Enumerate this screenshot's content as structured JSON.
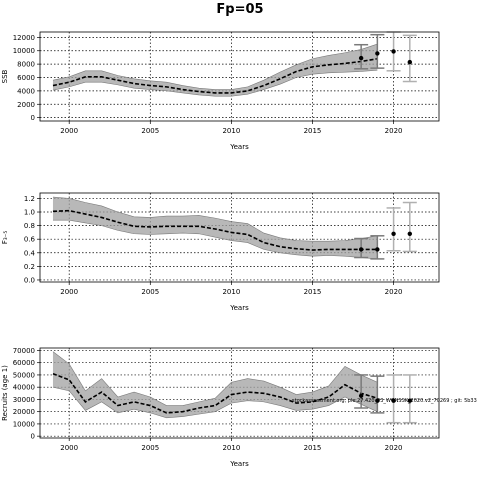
{
  "title": "Fp=05",
  "annotation": "stockassessment.org, ple.27.420_33_WGNSSK_2020.v2_70269 ; git: 5b33",
  "chart_data": [
    {
      "type": "line",
      "xlabel": "Years",
      "ylabel": "SSB",
      "xlim": [
        1998.2,
        2022.8
      ],
      "ylim": [
        -500,
        12800
      ],
      "xticks": [
        2000,
        2005,
        2010,
        2015,
        2020
      ],
      "yticks": [
        0,
        2000,
        4000,
        6000,
        8000,
        10000,
        12000
      ],
      "ytick_labels": [
        "0",
        "2000",
        "4000",
        "6000",
        "8000",
        "10000",
        "12000"
      ],
      "grid": true,
      "x": [
        1999,
        2000,
        2001,
        2002,
        2003,
        2004,
        2005,
        2006,
        2007,
        2008,
        2009,
        2010,
        2011,
        2012,
        2013,
        2014,
        2015,
        2016,
        2017,
        2018,
        2019
      ],
      "estimate": [
        4800,
        5300,
        6100,
        6100,
        5600,
        5100,
        4800,
        4600,
        4200,
        3900,
        3700,
        3700,
        4000,
        4800,
        5800,
        6900,
        7600,
        7900,
        8100,
        8400,
        8800
      ],
      "lower": [
        4100,
        4600,
        5300,
        5300,
        4900,
        4400,
        4200,
        4000,
        3700,
        3400,
        3200,
        3200,
        3500,
        4200,
        5000,
        6000,
        6500,
        6700,
        6800,
        6900,
        7100
      ],
      "upper": [
        5600,
        6100,
        7000,
        7000,
        6300,
        5800,
        5500,
        5300,
        4800,
        4400,
        4200,
        4200,
        4600,
        5600,
        6800,
        7900,
        8800,
        9300,
        9700,
        10200,
        11000
      ],
      "projection": [
        {
          "x": 2018,
          "value": 8900,
          "lower": 7300,
          "upper": 10900
        },
        {
          "x": 2019,
          "value": 9600,
          "lower": 7400,
          "upper": 12400
        },
        {
          "x": 2020,
          "value": 9900,
          "lower": 7000,
          "upper": 12800
        },
        {
          "x": 2021,
          "value": 8300,
          "lower": 5400,
          "upper": 12300
        }
      ]
    },
    {
      "type": "line",
      "xlabel": "Years",
      "ylabel": "F₃₋₅",
      "xlim": [
        1998.2,
        2022.8
      ],
      "ylim": [
        -0.03,
        1.28
      ],
      "xticks": [
        2000,
        2005,
        2010,
        2015,
        2020
      ],
      "yticks": [
        0.0,
        0.2,
        0.4,
        0.6,
        0.8,
        1.0,
        1.2
      ],
      "ytick_labels": [
        "0.0",
        "0.2",
        "0.4",
        "0.6",
        "0.8",
        "1.0",
        "1.2"
      ],
      "grid": true,
      "x": [
        1999,
        2000,
        2001,
        2002,
        2003,
        2004,
        2005,
        2006,
        2007,
        2008,
        2009,
        2010,
        2011,
        2012,
        2013,
        2014,
        2015,
        2016,
        2017,
        2018,
        2019
      ],
      "estimate": [
        1.01,
        1.02,
        0.97,
        0.92,
        0.85,
        0.79,
        0.78,
        0.79,
        0.79,
        0.79,
        0.75,
        0.7,
        0.67,
        0.55,
        0.49,
        0.46,
        0.44,
        0.45,
        0.45,
        0.45,
        0.45
      ],
      "lower": [
        0.88,
        0.88,
        0.84,
        0.8,
        0.73,
        0.68,
        0.67,
        0.68,
        0.69,
        0.68,
        0.63,
        0.58,
        0.55,
        0.45,
        0.4,
        0.37,
        0.35,
        0.36,
        0.35,
        0.33,
        0.31
      ],
      "upper": [
        1.22,
        1.2,
        1.14,
        1.09,
        1.0,
        0.93,
        0.92,
        0.94,
        0.94,
        0.95,
        0.91,
        0.86,
        0.83,
        0.69,
        0.62,
        0.58,
        0.57,
        0.57,
        0.58,
        0.61,
        0.65
      ],
      "projection": [
        {
          "x": 2018,
          "value": 0.45,
          "lower": 0.33,
          "upper": 0.61
        },
        {
          "x": 2019,
          "value": 0.45,
          "lower": 0.31,
          "upper": 0.65
        },
        {
          "x": 2020,
          "value": 0.68,
          "lower": 0.43,
          "upper": 1.06
        },
        {
          "x": 2021,
          "value": 0.68,
          "lower": 0.42,
          "upper": 1.14
        }
      ]
    },
    {
      "type": "line",
      "xlabel": "Years",
      "ylabel": "Recruits (age 1)",
      "xlim": [
        1998.2,
        2022.8
      ],
      "ylim": [
        -1500,
        72000
      ],
      "xticks": [
        2000,
        2005,
        2010,
        2015,
        2020
      ],
      "yticks": [
        0,
        10000,
        20000,
        30000,
        40000,
        50000,
        60000,
        70000
      ],
      "ytick_labels": [
        "0",
        "10000",
        "20000",
        "30000",
        "40000",
        "50000",
        "60000",
        "70000"
      ],
      "grid": true,
      "x": [
        1999,
        2000,
        2001,
        2002,
        2003,
        2004,
        2005,
        2006,
        2007,
        2008,
        2009,
        2010,
        2011,
        2012,
        2013,
        2014,
        2015,
        2016,
        2017,
        2018,
        2019
      ],
      "estimate": [
        51000,
        46000,
        28000,
        36000,
        25000,
        28000,
        25000,
        19000,
        20000,
        23000,
        25000,
        34000,
        36000,
        35000,
        32000,
        27000,
        28000,
        32000,
        42000,
        35000,
        31000
      ],
      "lower": [
        40000,
        37000,
        21000,
        28000,
        19000,
        22000,
        19000,
        15000,
        16000,
        18000,
        20000,
        27000,
        29000,
        28000,
        25000,
        21000,
        22000,
        25000,
        32000,
        26000,
        20000
      ],
      "upper": [
        69000,
        59000,
        37000,
        47000,
        32000,
        36000,
        32000,
        25000,
        25000,
        28000,
        31000,
        44000,
        47000,
        45000,
        40000,
        34000,
        36000,
        41000,
        57000,
        50000,
        44000
      ],
      "projection": [
        {
          "x": 2018,
          "value": 33000,
          "lower": 23000,
          "upper": 50000
        },
        {
          "x": 2019,
          "value": 29000,
          "lower": 19000,
          "upper": 49000
        },
        {
          "x": 2020,
          "value": 29000,
          "lower": 11000,
          "upper": 50000
        },
        {
          "x": 2021,
          "value": 29000,
          "lower": 11000,
          "upper": 50000
        }
      ]
    }
  ]
}
